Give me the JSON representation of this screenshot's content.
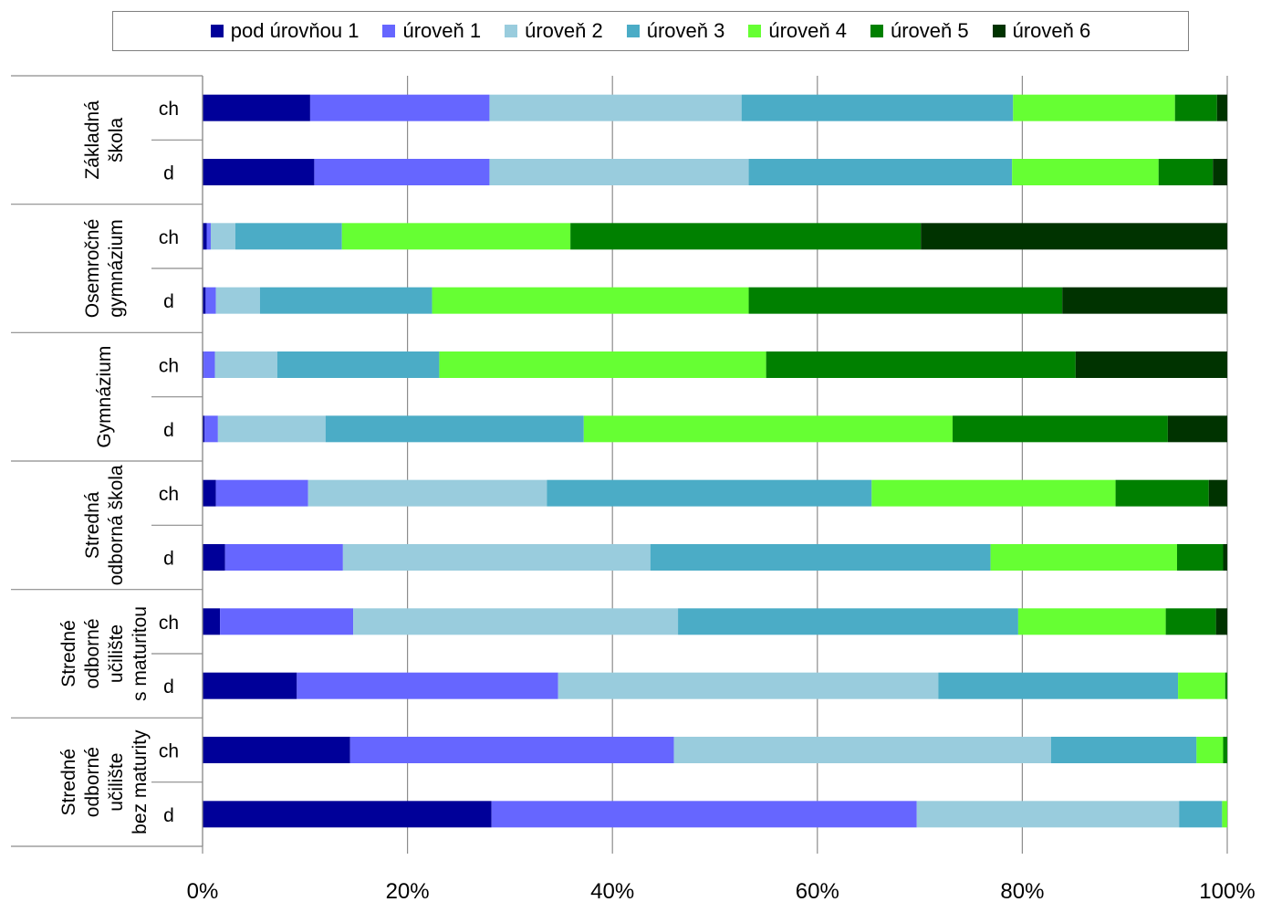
{
  "chart_data": {
    "type": "bar",
    "orientation": "horizontal",
    "stacked": "percent",
    "legend_position": "top",
    "grid": true,
    "xlim": [
      0,
      100
    ],
    "x_ticks": [
      "0%",
      "20%",
      "40%",
      "60%",
      "80%",
      "100%"
    ],
    "groups": [
      {
        "label_lines": [
          "Základná",
          "škola"
        ]
      },
      {
        "label_lines": [
          "Osemročné",
          "gymnázium"
        ]
      },
      {
        "label_lines": [
          "Gymnázium"
        ]
      },
      {
        "label_lines": [
          "Stredná",
          "odborná škola"
        ]
      },
      {
        "label_lines": [
          "Stredné",
          "odborné",
          "učilište",
          "s maturitou"
        ]
      },
      {
        "label_lines": [
          "Stredné",
          "odborné",
          "učilište",
          "bez maturity"
        ]
      }
    ],
    "categories": [
      "ch",
      "d"
    ],
    "series": [
      {
        "name": "pod úrovňou 1",
        "color": "#000099"
      },
      {
        "name": "úroveň 1",
        "color": "#6666FF"
      },
      {
        "name": "úroveň 2",
        "color": "#99CCDD"
      },
      {
        "name": "úroveň 3",
        "color": "#4BACC6"
      },
      {
        "name": "úroveň 4",
        "color": "#66FF33"
      },
      {
        "name": "úroveň 5",
        "color": "#008000"
      },
      {
        "name": "úroveň 6",
        "color": "#003300"
      }
    ],
    "rows": [
      {
        "group": 0,
        "label": "ch",
        "values": [
          10.5,
          17.5,
          24.6,
          26.5,
          15.8,
          4.1,
          1.0
        ]
      },
      {
        "group": 0,
        "label": "d",
        "values": [
          10.9,
          17.1,
          25.3,
          25.7,
          14.3,
          5.3,
          1.4
        ]
      },
      {
        "group": 1,
        "label": "ch",
        "values": [
          0.4,
          0.4,
          2.4,
          10.4,
          22.3,
          34.2,
          29.9
        ]
      },
      {
        "group": 1,
        "label": "d",
        "values": [
          0.3,
          1.0,
          4.3,
          16.8,
          30.9,
          30.6,
          16.1
        ]
      },
      {
        "group": 2,
        "label": "ch",
        "values": [
          0.1,
          1.1,
          6.1,
          15.8,
          31.9,
          30.2,
          14.8
        ]
      },
      {
        "group": 2,
        "label": "d",
        "values": [
          0.2,
          1.3,
          10.5,
          25.2,
          36.0,
          21.0,
          5.8
        ]
      },
      {
        "group": 3,
        "label": "ch",
        "values": [
          1.3,
          9.0,
          23.3,
          31.7,
          23.8,
          9.1,
          1.8
        ]
      },
      {
        "group": 3,
        "label": "d",
        "values": [
          2.2,
          11.5,
          30.0,
          33.2,
          18.2,
          4.5,
          0.4
        ]
      },
      {
        "group": 4,
        "label": "ch",
        "values": [
          1.7,
          13.0,
          31.7,
          33.2,
          14.4,
          4.9,
          1.1
        ]
      },
      {
        "group": 4,
        "label": "d",
        "values": [
          9.2,
          25.5,
          37.1,
          23.4,
          4.6,
          0.2,
          0.0
        ]
      },
      {
        "group": 5,
        "label": "ch",
        "values": [
          14.4,
          31.6,
          36.8,
          14.2,
          2.6,
          0.4,
          0.0
        ]
      },
      {
        "group": 5,
        "label": "d",
        "values": [
          28.2,
          41.5,
          25.6,
          4.2,
          0.5,
          0.0,
          0.0
        ]
      }
    ]
  }
}
